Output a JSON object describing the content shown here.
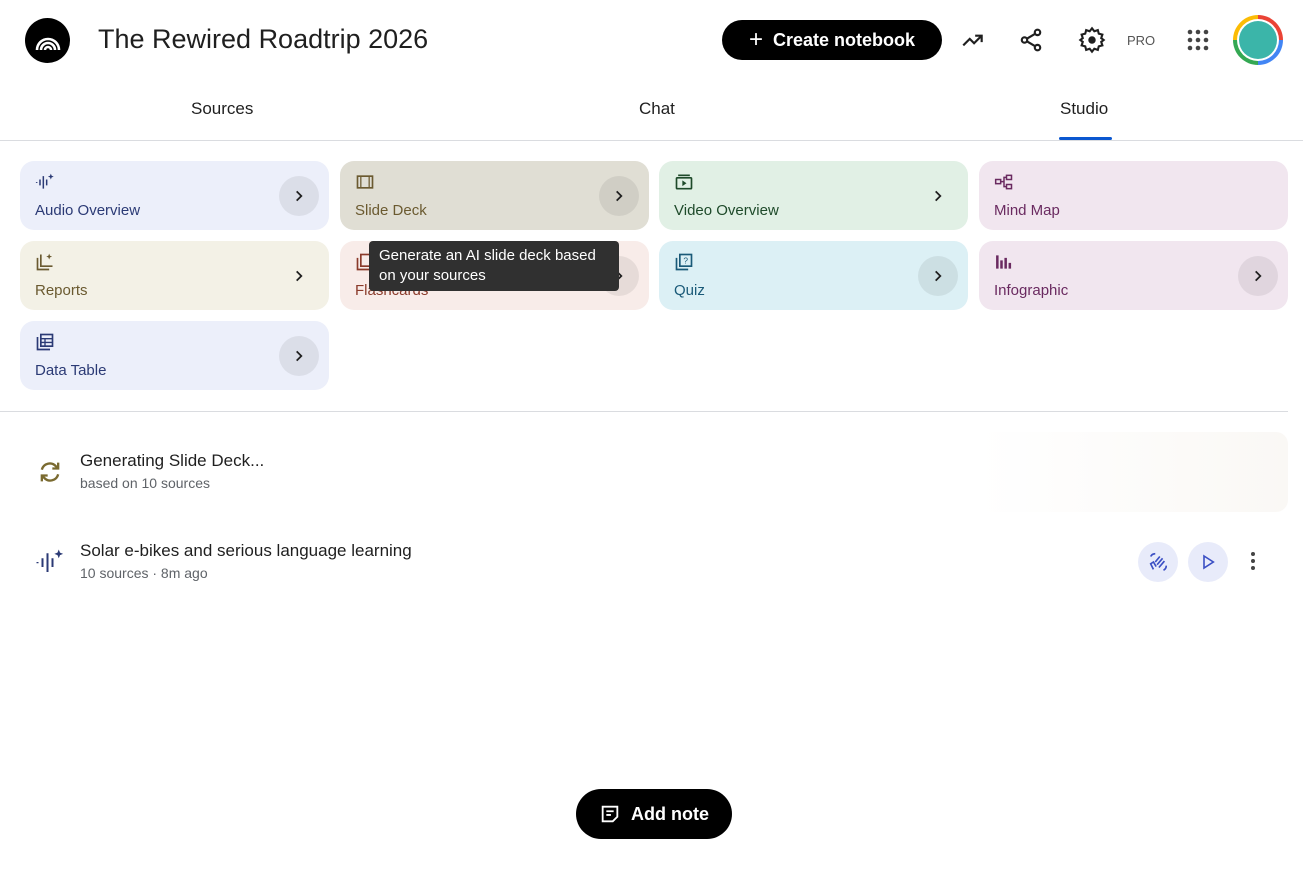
{
  "header": {
    "title": "The Rewired Roadtrip 2026",
    "create_label": "Create notebook",
    "pro_label": "PRO"
  },
  "tabs": [
    {
      "label": "Sources"
    },
    {
      "label": "Chat"
    },
    {
      "label": "Studio",
      "active": true
    }
  ],
  "studio_cards": [
    {
      "label": "Audio Overview",
      "icon": "audio-waveform-icon",
      "bg": "#eceffa",
      "color": "#2b3a75"
    },
    {
      "label": "Slide Deck",
      "icon": "slides-icon",
      "bg": "#e0ded4",
      "color": "#6b5a30"
    },
    {
      "label": "Video Overview",
      "icon": "video-icon",
      "bg": "#e1f0e5",
      "color": "#1e4a2a"
    },
    {
      "label": "Mind Map",
      "icon": "mind-map-icon",
      "bg": "#f1e6ef",
      "color": "#6a2a60"
    },
    {
      "label": "Reports",
      "icon": "reports-icon",
      "bg": "#f3f1e6",
      "color": "#6a5a30"
    },
    {
      "label": "Flashcards",
      "icon": "flashcards-icon",
      "bg": "#f8ece9",
      "color": "#8a3a2a"
    },
    {
      "label": "Quiz",
      "icon": "quiz-icon",
      "bg": "#dcf0f5",
      "color": "#1a5a78"
    },
    {
      "label": "Infographic",
      "icon": "infographic-icon",
      "bg": "#f1e6ef",
      "color": "#6a2a60"
    },
    {
      "label": "Data Table",
      "icon": "data-table-icon",
      "bg": "#eceffa",
      "color": "#2b3a75"
    }
  ],
  "tooltip": "Generate an AI slide deck based on your sources",
  "items": [
    {
      "title": "Generating Slide Deck...",
      "subtitle": "based on 10 sources"
    },
    {
      "title": "Solar e-bikes and serious language learning",
      "subtitle": "10 sources · 8m ago"
    }
  ],
  "add_note_label": "Add note"
}
